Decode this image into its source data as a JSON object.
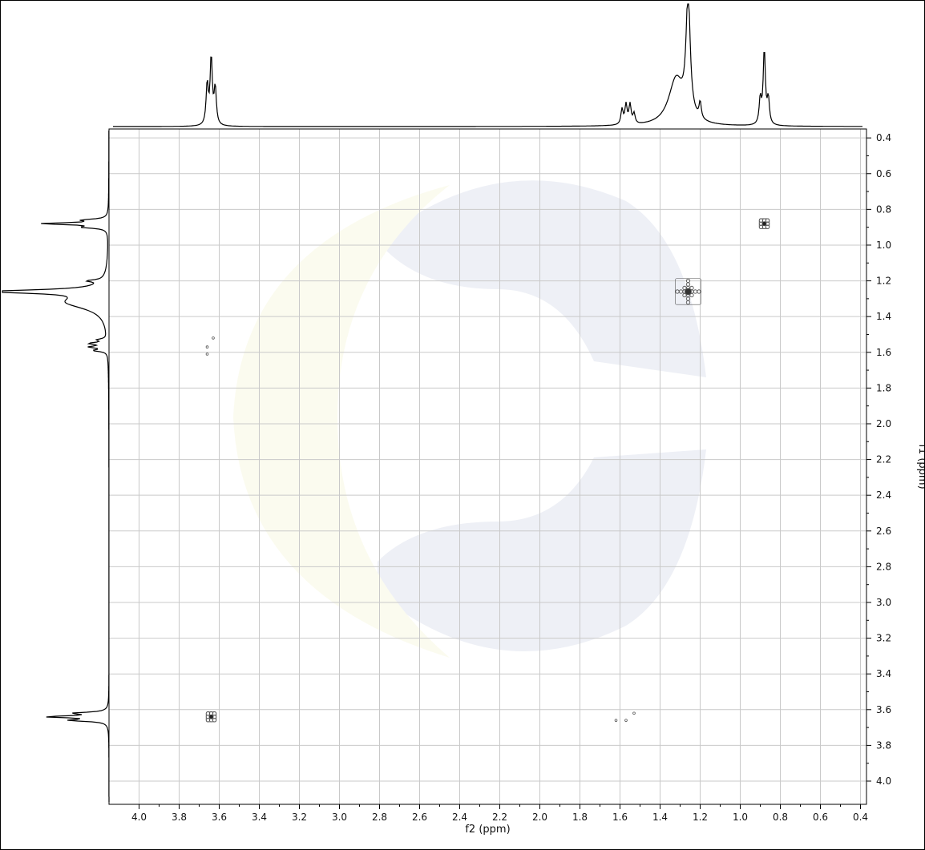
{
  "chart_data": {
    "type": "contour",
    "experiment": "2D homonuclear correlation (1H-1H)",
    "xlabel": "f2 (ppm)",
    "ylabel": "f1 (ppm)",
    "xlim": [
      4.15,
      0.37
    ],
    "ylim": [
      0.35,
      4.13
    ],
    "x_ticks": [
      4.0,
      3.8,
      3.6,
      3.4,
      3.2,
      3.0,
      2.8,
      2.6,
      2.4,
      2.2,
      2.0,
      1.8,
      1.6,
      1.4,
      1.2,
      1.0,
      0.8,
      0.6,
      0.4
    ],
    "y_ticks": [
      0.4,
      0.6,
      0.8,
      1.0,
      1.2,
      1.4,
      1.6,
      1.8,
      2.0,
      2.2,
      2.4,
      2.6,
      2.8,
      3.0,
      3.2,
      3.4,
      3.6,
      3.8,
      4.0
    ],
    "x_tick_labels": [
      "4.0",
      "3.8",
      "3.6",
      "3.4",
      "3.2",
      "3.0",
      "2.8",
      "2.6",
      "2.4",
      "2.2",
      "2.0",
      "1.8",
      "1.6",
      "1.4",
      "1.2",
      "1.0",
      "0.8",
      "0.6",
      "0.4"
    ],
    "y_tick_labels": [
      "0.4",
      "0.6",
      "0.8",
      "1.0",
      "1.2",
      "1.4",
      "1.6",
      "1.8",
      "2.0",
      "2.2",
      "2.4",
      "2.6",
      "2.8",
      "3.0",
      "3.2",
      "3.4",
      "3.6",
      "3.8",
      "4.0"
    ],
    "grid": true,
    "projection_1d": {
      "peaks": [
        {
          "shift": 3.66,
          "height": 0.4
        },
        {
          "shift": 3.64,
          "height": 0.66
        },
        {
          "shift": 3.62,
          "height": 0.36
        },
        {
          "shift": 1.59,
          "height": 0.15
        },
        {
          "shift": 1.57,
          "height": 0.19
        },
        {
          "shift": 1.55,
          "height": 0.19
        },
        {
          "shift": 1.53,
          "height": 0.1
        },
        {
          "shift": 1.32,
          "height": 0.45
        },
        {
          "shift": 1.26,
          "height": 1.2
        },
        {
          "shift": 1.2,
          "height": 0.16
        },
        {
          "shift": 0.9,
          "height": 0.25
        },
        {
          "shift": 0.88,
          "height": 0.73
        },
        {
          "shift": 0.86,
          "height": 0.25
        }
      ]
    },
    "cross_peaks": [
      {
        "f2": 0.88,
        "f1": 0.88,
        "kind": "diagonal",
        "intensity": "medium"
      },
      {
        "f2": 1.26,
        "f1": 1.26,
        "kind": "diagonal",
        "intensity": "strong"
      },
      {
        "f2": 3.64,
        "f1": 3.64,
        "kind": "diagonal",
        "intensity": "medium"
      },
      {
        "f2": 3.63,
        "f1": 1.52,
        "kind": "cross",
        "intensity": "weak"
      },
      {
        "f2": 3.66,
        "f1": 1.57,
        "kind": "cross",
        "intensity": "weak"
      },
      {
        "f2": 3.66,
        "f1": 1.61,
        "kind": "cross",
        "intensity": "weak"
      },
      {
        "f2": 1.53,
        "f1": 3.62,
        "kind": "cross",
        "intensity": "weak"
      },
      {
        "f2": 1.57,
        "f1": 3.66,
        "kind": "cross",
        "intensity": "weak"
      },
      {
        "f2": 1.62,
        "f1": 3.66,
        "kind": "cross",
        "intensity": "weak"
      }
    ],
    "colors": {
      "contour": "#555555",
      "spectrum": "#000000",
      "grid": "#c9c9c9",
      "watermark_blue": "#eef0f6",
      "watermark_yellow": "#fbfbef"
    }
  }
}
